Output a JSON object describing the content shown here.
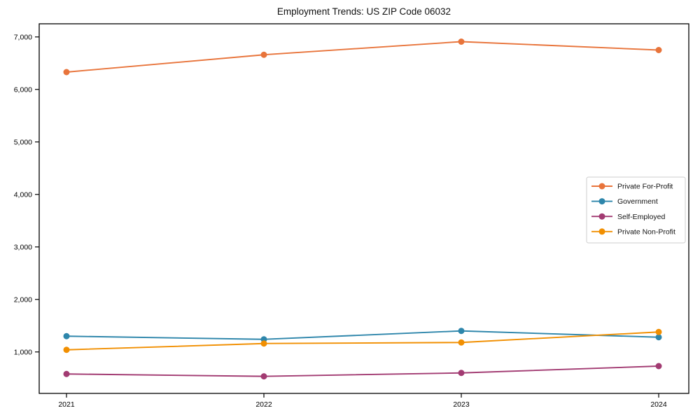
{
  "page": {
    "background": "#ffffff"
  },
  "chart_data": {
    "type": "line",
    "title": "Employment Trends: US ZIP Code 06032",
    "categories": [
      "2021",
      "2022",
      "2023",
      "2024"
    ],
    "series": [
      {
        "name": "Private For-Profit",
        "color": "#E8743B",
        "values": [
          6330,
          6660,
          6910,
          6750
        ]
      },
      {
        "name": "Government",
        "color": "#2E86AB",
        "values": [
          1300,
          1240,
          1400,
          1280
        ]
      },
      {
        "name": "Self-Employed",
        "color": "#A23B72",
        "values": [
          580,
          535,
          600,
          730
        ]
      },
      {
        "name": "Private Non-Profit",
        "color": "#F18F01",
        "values": [
          1040,
          1160,
          1180,
          1380
        ]
      }
    ],
    "xlabel": "",
    "ylabel": "",
    "ylim": [
      210,
      7250
    ],
    "yticks": [
      1000,
      2000,
      3000,
      4000,
      5000,
      6000,
      7000
    ],
    "ytick_labels": [
      "1,000",
      "2,000",
      "3,000",
      "4,000",
      "5,000",
      "6,000",
      "7,000"
    ],
    "grid": false,
    "marker": "circle",
    "legend": {
      "position": "center-right",
      "background": "#ffffff",
      "border_color": "#cccccc",
      "entries": [
        "Private For-Profit",
        "Government",
        "Self-Employed",
        "Private Non-Profit"
      ]
    },
    "axis_color": "#000000",
    "tick_label_color": "#000000"
  }
}
